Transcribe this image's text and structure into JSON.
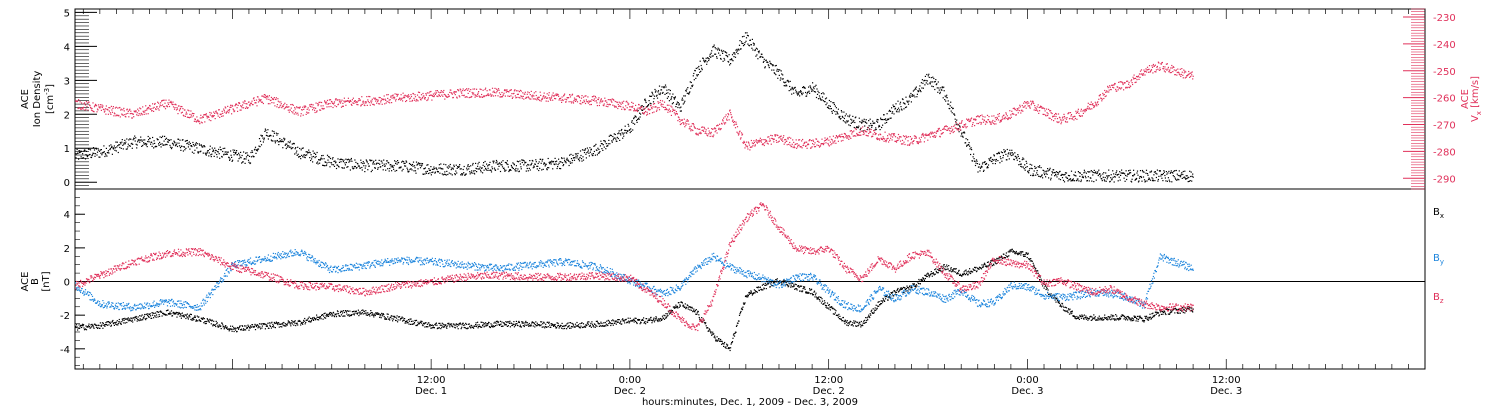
{
  "chart_data": {
    "type": "scatter",
    "footer_label": "hours:minutes, Dec.  1, 2009 - Dec.  3, 2009",
    "time_range_hours": [
      -9.5,
      72
    ],
    "x_ticks": [
      {
        "time": "12:00",
        "date": "Dec. 1",
        "hours": 12
      },
      {
        "time": "0:00",
        "date": "Dec. 2",
        "hours": 24
      },
      {
        "time": "12:00",
        "date": "Dec. 2",
        "hours": 36
      },
      {
        "time": "0:00",
        "date": "Dec. 3",
        "hours": 48
      },
      {
        "time": "12:00",
        "date": "Dec. 3",
        "hours": 60
      }
    ],
    "top_panel": {
      "left_axis": {
        "label_line1": "ACE",
        "label_line2": "Ion Density",
        "unit": "[cm",
        "unit_exp": "-3",
        "unit_close": "]",
        "ylim": [
          -0.2,
          5.1
        ],
        "ticks": [
          "0",
          "1",
          "2",
          "3",
          "4",
          "5"
        ],
        "tick_values": [
          0,
          1,
          2,
          3,
          4,
          5
        ]
      },
      "right_axis": {
        "label_line1": "ACE",
        "label_var": "V",
        "label_sub": "x",
        "label_unit": "[km/s]",
        "ylim": [
          -294,
          -227
        ],
        "ticks": [
          "-230",
          "-240",
          "-250",
          "-260",
          "-270",
          "-280",
          "-290"
        ],
        "tick_values": [
          -230,
          -240,
          -250,
          -260,
          -270,
          -280,
          -290
        ]
      },
      "series": [
        {
          "name": "Ion Density",
          "color": "#000000",
          "axis": "left",
          "t": [
            -9.5,
            -8,
            -6,
            -4,
            -2,
            0,
            1,
            2,
            3,
            4,
            6,
            8,
            10,
            12,
            14,
            16,
            18,
            20,
            22,
            24,
            25,
            26,
            27,
            28,
            29,
            30,
            31,
            32,
            33,
            34,
            35,
            36,
            37,
            38,
            39,
            40,
            41,
            42,
            43,
            44,
            45,
            46,
            47,
            48,
            50,
            52,
            54,
            56,
            58
          ],
          "y": [
            0.8,
            0.9,
            1.2,
            1.2,
            1.0,
            0.8,
            0.7,
            1.5,
            1.2,
            0.9,
            0.6,
            0.5,
            0.5,
            0.4,
            0.4,
            0.5,
            0.5,
            0.6,
            1.0,
            1.6,
            2.4,
            2.8,
            2.2,
            3.3,
            3.9,
            3.6,
            4.3,
            3.6,
            3.2,
            2.6,
            2.8,
            2.3,
            1.9,
            1.7,
            1.7,
            2.2,
            2.5,
            3.1,
            2.6,
            1.5,
            0.4,
            0.7,
            0.9,
            0.4,
            0.2,
            0.2,
            0.2,
            0.2,
            0.2
          ]
        },
        {
          "name": "Vx",
          "color": "#e0305a",
          "axis": "right",
          "t": [
            -9.5,
            -8,
            -6,
            -4,
            -2,
            0,
            2,
            4,
            6,
            8,
            10,
            12,
            14,
            16,
            18,
            20,
            22,
            24,
            25,
            26,
            27,
            28,
            29,
            30,
            31,
            32,
            33,
            34,
            35,
            36,
            37,
            38,
            39,
            40,
            41,
            42,
            43,
            44,
            45,
            46,
            47,
            48,
            49,
            50,
            51,
            52,
            53,
            54,
            55,
            56,
            58
          ],
          "y": [
            -262,
            -264,
            -266,
            -262,
            -268,
            -264,
            -260,
            -265,
            -262,
            -261,
            -260,
            -259,
            -258,
            -258,
            -259,
            -260,
            -261,
            -263,
            -265,
            -262,
            -268,
            -272,
            -273,
            -266,
            -278,
            -276,
            -275,
            -277,
            -277,
            -276,
            -274,
            -272,
            -274,
            -275,
            -276,
            -274,
            -272,
            -270,
            -268,
            -268,
            -266,
            -262,
            -265,
            -268,
            -266,
            -262,
            -256,
            -255,
            -250,
            -248,
            -252
          ]
        }
      ]
    },
    "bottom_panel": {
      "axis": {
        "label_line1": "ACE",
        "label_var": "B",
        "label_unit": "[nT]",
        "ylim": [
          -5.2,
          5.5
        ],
        "ticks": [
          "-4",
          "-2",
          "0",
          "2",
          "4"
        ],
        "tick_values": [
          -4,
          -2,
          0,
          2,
          4
        ],
        "zero_line": true
      },
      "legend_placement": "right",
      "series": [
        {
          "name": "B",
          "sub": "x",
          "color": "#000000",
          "t": [
            -9.5,
            -8,
            -6,
            -4,
            -2,
            0,
            2,
            4,
            6,
            8,
            10,
            12,
            14,
            16,
            18,
            20,
            22,
            24,
            25,
            26,
            27,
            28,
            29,
            30,
            31,
            32,
            33,
            34,
            35,
            36,
            37,
            38,
            39,
            40,
            41,
            42,
            43,
            44,
            45,
            46,
            47,
            48,
            49,
            50,
            51,
            52,
            53,
            54,
            55,
            56,
            58
          ],
          "y": [
            -2.7,
            -2.6,
            -2.2,
            -1.8,
            -2.2,
            -2.8,
            -2.6,
            -2.4,
            -1.9,
            -1.8,
            -2.2,
            -2.6,
            -2.6,
            -2.5,
            -2.5,
            -2.6,
            -2.5,
            -2.3,
            -2.3,
            -2.1,
            -1.3,
            -1.8,
            -3.2,
            -4.0,
            -0.8,
            -0.3,
            0.1,
            -0.3,
            -0.6,
            -1.5,
            -2.4,
            -2.5,
            -1.3,
            -0.6,
            -0.3,
            0.4,
            0.9,
            0.5,
            0.8,
            1.2,
            1.8,
            1.6,
            -0.3,
            -1.4,
            -2.1,
            -2.1,
            -2.1,
            -2.1,
            -2.2,
            -1.8,
            -1.6
          ]
        },
        {
          "name": "B",
          "sub": "y",
          "color": "#1f86dd",
          "t": [
            -9.5,
            -8,
            -6,
            -4,
            -2,
            0,
            2,
            4,
            6,
            8,
            10,
            12,
            14,
            16,
            18,
            20,
            22,
            24,
            25,
            26,
            27,
            28,
            29,
            30,
            31,
            32,
            33,
            34,
            35,
            36,
            37,
            38,
            39,
            40,
            41,
            42,
            43,
            44,
            45,
            46,
            47,
            48,
            49,
            50,
            51,
            52,
            53,
            54,
            55,
            56,
            58
          ],
          "y": [
            -0.2,
            -1.3,
            -1.5,
            -1.2,
            -1.5,
            1.0,
            1.4,
            1.8,
            0.7,
            1.0,
            1.3,
            1.2,
            1.0,
            0.8,
            1.0,
            1.2,
            0.9,
            0.1,
            -0.3,
            -0.7,
            -0.3,
            0.8,
            1.5,
            0.9,
            0.5,
            0.2,
            -0.2,
            0.3,
            0.3,
            -0.6,
            -1.4,
            -1.6,
            -0.4,
            -1.0,
            -0.4,
            -0.6,
            -1.0,
            -0.5,
            -1.3,
            -1.2,
            -0.2,
            -0.3,
            -0.8,
            -0.9,
            -0.8,
            -0.6,
            -0.7,
            -0.9,
            -1.4,
            1.5,
            0.8
          ]
        },
        {
          "name": "B",
          "sub": "z",
          "color": "#e0305a",
          "t": [
            -9.5,
            -8,
            -6,
            -4,
            -2,
            0,
            2,
            4,
            6,
            8,
            10,
            12,
            14,
            16,
            18,
            20,
            22,
            24,
            25,
            26,
            27,
            28,
            29,
            30,
            31,
            32,
            33,
            34,
            35,
            36,
            37,
            38,
            39,
            40,
            41,
            42,
            43,
            44,
            45,
            46,
            47,
            48,
            49,
            50,
            51,
            52,
            53,
            54,
            55,
            56,
            58
          ],
          "y": [
            -0.2,
            0.4,
            1.2,
            1.7,
            1.8,
            0.9,
            0.4,
            -0.2,
            -0.3,
            -0.6,
            -0.2,
            0.0,
            0.3,
            0.4,
            0.3,
            0.3,
            0.4,
            0.2,
            -0.5,
            -1.2,
            -2.2,
            -2.8,
            -1.0,
            2.2,
            3.8,
            4.6,
            3.2,
            2.0,
            1.8,
            2.0,
            0.8,
            0.2,
            1.4,
            0.8,
            1.6,
            1.7,
            0.5,
            -0.4,
            -0.2,
            1.4,
            1.1,
            1.0,
            -0.1,
            0.1,
            -0.3,
            -0.6,
            -0.4,
            -0.9,
            -1.3,
            -1.5,
            -1.5
          ]
        }
      ]
    }
  }
}
